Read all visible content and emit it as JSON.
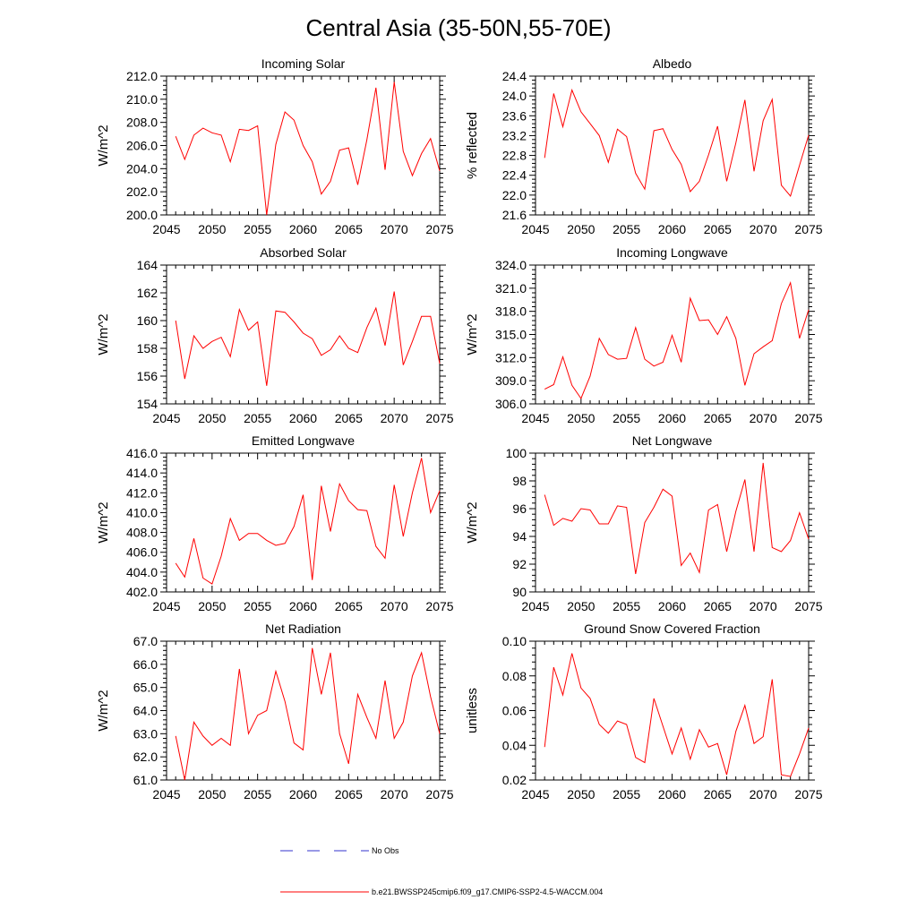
{
  "title": "Central Asia (35-50N,55-70E)",
  "legend": {
    "no_obs": "No Obs",
    "model": "b.e21.BWSSP245cmip6.f09_g17.CMIP6-SSP2-4.5-WACCM.004",
    "obs_color": "#3333cc",
    "model_color": "#ff0000"
  },
  "chart_data": [
    {
      "type": "line",
      "title": "Incoming Solar",
      "ylabel": "W/m^2",
      "xlim": [
        2045,
        2075
      ],
      "ylim": [
        200,
        212
      ],
      "yticks": [
        200,
        202,
        204,
        206,
        208,
        210,
        212
      ],
      "ytick_labels": [
        "200.0",
        "202.0",
        "204.0",
        "206.0",
        "208.0",
        "210.0",
        "212.0"
      ],
      "xticks": [
        2045,
        2050,
        2055,
        2060,
        2065,
        2070,
        2075
      ],
      "xtick_labels": [
        "2045",
        "2050",
        "2055",
        "2060",
        "2065",
        "2070",
        "2075"
      ],
      "x": [
        2046,
        2047,
        2048,
        2049,
        2050,
        2051,
        2052,
        2053,
        2054,
        2055,
        2056,
        2057,
        2058,
        2059,
        2060,
        2061,
        2062,
        2063,
        2064,
        2065,
        2066,
        2067,
        2068,
        2069,
        2070,
        2071,
        2072,
        2073,
        2074,
        2075
      ],
      "series": [
        {
          "values": [
            206.8,
            204.8,
            206.9,
            207.5,
            207.1,
            206.9,
            204.6,
            207.4,
            207.3,
            207.7,
            200.0,
            206.1,
            208.9,
            208.2,
            206.0,
            204.6,
            201.8,
            202.9,
            205.6,
            205.8,
            202.6,
            206.5,
            211.0,
            203.9,
            211.5,
            205.5,
            203.4,
            205.3,
            206.6,
            203.8
          ]
        }
      ]
    },
    {
      "type": "line",
      "title": "Albedo",
      "ylabel": "% reflected",
      "xlim": [
        2045,
        2075
      ],
      "ylim": [
        21.6,
        24.4
      ],
      "yticks": [
        21.6,
        22.0,
        22.4,
        22.8,
        23.2,
        23.6,
        24.0,
        24.4
      ],
      "ytick_labels": [
        "21.6",
        "22.0",
        "22.4",
        "22.8",
        "23.2",
        "23.6",
        "24.0",
        "24.4"
      ],
      "xticks": [
        2045,
        2050,
        2055,
        2060,
        2065,
        2070,
        2075
      ],
      "xtick_labels": [
        "2045",
        "2050",
        "2055",
        "2060",
        "2065",
        "2070",
        "2075"
      ],
      "x": [
        2046,
        2047,
        2048,
        2049,
        2050,
        2051,
        2052,
        2053,
        2054,
        2055,
        2056,
        2057,
        2058,
        2059,
        2060,
        2061,
        2062,
        2063,
        2064,
        2065,
        2066,
        2067,
        2068,
        2069,
        2070,
        2071,
        2072,
        2073,
        2074,
        2075
      ],
      "series": [
        {
          "values": [
            22.75,
            24.05,
            23.38,
            24.12,
            23.68,
            23.44,
            23.2,
            22.66,
            23.33,
            23.18,
            22.44,
            22.12,
            23.3,
            23.34,
            22.92,
            22.62,
            22.07,
            22.28,
            22.81,
            23.39,
            22.28,
            23.05,
            23.92,
            22.48,
            23.5,
            23.93,
            22.2,
            21.98,
            22.6,
            23.21
          ]
        }
      ]
    },
    {
      "type": "line",
      "title": "Absorbed Solar",
      "ylabel": "W/m^2",
      "xlim": [
        2045,
        2075
      ],
      "ylim": [
        154,
        164
      ],
      "yticks": [
        154,
        156,
        158,
        160,
        162,
        164
      ],
      "ytick_labels": [
        "154",
        "156",
        "158",
        "160",
        "162",
        "164"
      ],
      "xticks": [
        2045,
        2050,
        2055,
        2060,
        2065,
        2070,
        2075
      ],
      "xtick_labels": [
        "2045",
        "2050",
        "2055",
        "2060",
        "2065",
        "2070",
        "2075"
      ],
      "x": [
        2046,
        2047,
        2048,
        2049,
        2050,
        2051,
        2052,
        2053,
        2054,
        2055,
        2056,
        2057,
        2058,
        2059,
        2060,
        2061,
        2062,
        2063,
        2064,
        2065,
        2066,
        2067,
        2068,
        2069,
        2070,
        2071,
        2072,
        2073,
        2074,
        2075
      ],
      "series": [
        {
          "values": [
            160.0,
            155.8,
            158.9,
            158.0,
            158.5,
            158.8,
            157.4,
            160.8,
            159.3,
            159.9,
            155.3,
            160.7,
            160.6,
            159.9,
            159.1,
            158.7,
            157.5,
            157.9,
            158.9,
            158.0,
            157.7,
            159.5,
            160.9,
            158.2,
            162.1,
            156.8,
            158.5,
            160.3,
            160.3,
            156.9
          ]
        }
      ]
    },
    {
      "type": "line",
      "title": "Incoming Longwave",
      "ylabel": "W/m^2",
      "xlim": [
        2045,
        2075
      ],
      "ylim": [
        306,
        324
      ],
      "yticks": [
        306,
        309,
        312,
        315,
        318,
        321,
        324
      ],
      "ytick_labels": [
        "306.0",
        "309.0",
        "312.0",
        "315.0",
        "318.0",
        "321.0",
        "324.0"
      ],
      "xticks": [
        2045,
        2050,
        2055,
        2060,
        2065,
        2070,
        2075
      ],
      "xtick_labels": [
        "2045",
        "2050",
        "2055",
        "2060",
        "2065",
        "2070",
        "2075"
      ],
      "x": [
        2046,
        2047,
        2048,
        2049,
        2050,
        2051,
        2052,
        2053,
        2054,
        2055,
        2056,
        2057,
        2058,
        2059,
        2060,
        2061,
        2062,
        2063,
        2064,
        2065,
        2066,
        2067,
        2068,
        2069,
        2070,
        2071,
        2072,
        2073,
        2074,
        2075
      ],
      "series": [
        {
          "values": [
            307.9,
            308.5,
            312.1,
            308.4,
            306.7,
            309.6,
            314.5,
            312.4,
            311.8,
            311.9,
            315.9,
            311.8,
            310.9,
            311.4,
            314.9,
            311.4,
            319.7,
            316.8,
            316.9,
            315.0,
            317.3,
            314.5,
            308.4,
            312.5,
            313.4,
            314.2,
            319.0,
            321.7,
            314.5,
            318.2
          ]
        }
      ]
    },
    {
      "type": "line",
      "title": "Emitted Longwave",
      "ylabel": "W/m^2",
      "xlim": [
        2045,
        2075
      ],
      "ylim": [
        402,
        416
      ],
      "yticks": [
        402,
        404,
        406,
        408,
        410,
        412,
        414,
        416
      ],
      "ytick_labels": [
        "402.0",
        "404.0",
        "406.0",
        "408.0",
        "410.0",
        "412.0",
        "414.0",
        "416.0"
      ],
      "xticks": [
        2045,
        2050,
        2055,
        2060,
        2065,
        2070,
        2075
      ],
      "xtick_labels": [
        "2045",
        "2050",
        "2055",
        "2060",
        "2065",
        "2070",
        "2075"
      ],
      "x": [
        2046,
        2047,
        2048,
        2049,
        2050,
        2051,
        2052,
        2053,
        2054,
        2055,
        2056,
        2057,
        2058,
        2059,
        2060,
        2061,
        2062,
        2063,
        2064,
        2065,
        2066,
        2067,
        2068,
        2069,
        2070,
        2071,
        2072,
        2073,
        2074,
        2075
      ],
      "series": [
        {
          "values": [
            404.9,
            403.5,
            407.4,
            403.4,
            402.8,
            405.6,
            409.4,
            407.2,
            407.9,
            407.9,
            407.2,
            406.7,
            406.9,
            408.6,
            411.8,
            403.2,
            412.7,
            408.1,
            412.9,
            411.2,
            410.3,
            410.2,
            406.6,
            405.4,
            412.8,
            407.6,
            412.0,
            415.5,
            410.0,
            412.2
          ]
        }
      ]
    },
    {
      "type": "line",
      "title": "Net Longwave",
      "ylabel": "W/m^2",
      "xlim": [
        2045,
        2075
      ],
      "ylim": [
        90,
        100
      ],
      "yticks": [
        90,
        92,
        94,
        96,
        98,
        100
      ],
      "ytick_labels": [
        "90",
        "92",
        "94",
        "96",
        "98",
        "100"
      ],
      "xticks": [
        2045,
        2050,
        2055,
        2060,
        2065,
        2070,
        2075
      ],
      "xtick_labels": [
        "2045",
        "2050",
        "2055",
        "2060",
        "2065",
        "2070",
        "2075"
      ],
      "x": [
        2046,
        2047,
        2048,
        2049,
        2050,
        2051,
        2052,
        2053,
        2054,
        2055,
        2056,
        2057,
        2058,
        2059,
        2060,
        2061,
        2062,
        2063,
        2064,
        2065,
        2066,
        2067,
        2068,
        2069,
        2070,
        2071,
        2072,
        2073,
        2074,
        2075
      ],
      "series": [
        {
          "values": [
            97.0,
            94.8,
            95.3,
            95.1,
            96.0,
            95.9,
            94.9,
            94.9,
            96.2,
            96.1,
            91.3,
            95.0,
            96.1,
            97.4,
            96.9,
            91.9,
            92.8,
            91.4,
            95.9,
            96.3,
            92.9,
            95.8,
            98.1,
            92.9,
            99.3,
            93.2,
            92.9,
            93.7,
            95.7,
            93.8
          ]
        }
      ]
    },
    {
      "type": "line",
      "title": "Net Radiation",
      "ylabel": "W/m^2",
      "xlim": [
        2045,
        2075
      ],
      "ylim": [
        61,
        67
      ],
      "yticks": [
        61,
        62,
        63,
        64,
        65,
        66,
        67
      ],
      "ytick_labels": [
        "61.0",
        "62.0",
        "63.0",
        "64.0",
        "65.0",
        "66.0",
        "67.0"
      ],
      "xticks": [
        2045,
        2050,
        2055,
        2060,
        2065,
        2070,
        2075
      ],
      "xtick_labels": [
        "2045",
        "2050",
        "2055",
        "2060",
        "2065",
        "2070",
        "2075"
      ],
      "x": [
        2046,
        2047,
        2048,
        2049,
        2050,
        2051,
        2052,
        2053,
        2054,
        2055,
        2056,
        2057,
        2058,
        2059,
        2060,
        2061,
        2062,
        2063,
        2064,
        2065,
        2066,
        2067,
        2068,
        2069,
        2070,
        2071,
        2072,
        2073,
        2074,
        2075
      ],
      "series": [
        {
          "values": [
            62.9,
            61.0,
            63.5,
            62.9,
            62.5,
            62.8,
            62.5,
            65.8,
            63.0,
            63.8,
            64.0,
            65.7,
            64.4,
            62.6,
            62.3,
            66.7,
            64.7,
            66.5,
            63.0,
            61.7,
            64.7,
            63.7,
            62.8,
            65.3,
            62.8,
            63.5,
            65.5,
            66.5,
            64.6,
            63.0
          ]
        }
      ]
    },
    {
      "type": "line",
      "title": "Ground Snow Covered Fraction",
      "ylabel": "unitless",
      "xlim": [
        2045,
        2075
      ],
      "ylim": [
        0.02,
        0.1
      ],
      "yticks": [
        0.02,
        0.04,
        0.06,
        0.08,
        0.1
      ],
      "ytick_labels": [
        "0.02",
        "0.04",
        "0.06",
        "0.08",
        "0.10"
      ],
      "xticks": [
        2045,
        2050,
        2055,
        2060,
        2065,
        2070,
        2075
      ],
      "xtick_labels": [
        "2045",
        "2050",
        "2055",
        "2060",
        "2065",
        "2070",
        "2075"
      ],
      "x": [
        2046,
        2047,
        2048,
        2049,
        2050,
        2051,
        2052,
        2053,
        2054,
        2055,
        2056,
        2057,
        2058,
        2059,
        2060,
        2061,
        2062,
        2063,
        2064,
        2065,
        2066,
        2067,
        2068,
        2069,
        2070,
        2071,
        2072,
        2073,
        2074,
        2075
      ],
      "series": [
        {
          "values": [
            0.039,
            0.085,
            0.069,
            0.093,
            0.073,
            0.067,
            0.052,
            0.047,
            0.054,
            0.052,
            0.033,
            0.03,
            0.067,
            0.051,
            0.035,
            0.05,
            0.032,
            0.049,
            0.039,
            0.041,
            0.023,
            0.048,
            0.063,
            0.041,
            0.045,
            0.078,
            0.023,
            0.022,
            0.035,
            0.05
          ]
        }
      ]
    }
  ]
}
